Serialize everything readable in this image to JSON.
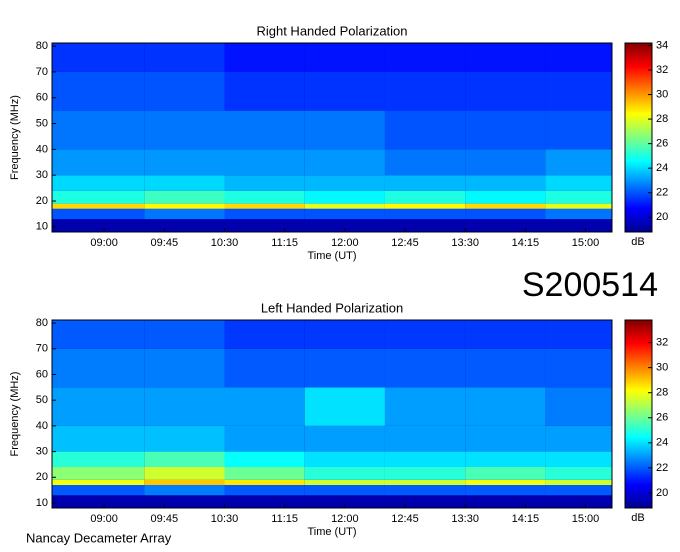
{
  "event_id": "S200514",
  "footer": "Nancay Decameter Array",
  "chart_data": [
    {
      "type": "heatmap",
      "title": "Right Handed Polarization",
      "x_label": "Time (UT)",
      "y_label": "Frequency (MHz)",
      "colorbar_label": "dB",
      "xlim": [
        8.35,
        15.33
      ],
      "ylim": [
        8,
        81.2
      ],
      "clim": [
        18.8,
        34.2
      ],
      "xticks": [
        {
          "value": 9,
          "label": "09:00"
        },
        {
          "value": 9.75,
          "label": "09:45"
        },
        {
          "value": 10.5,
          "label": "10:30"
        },
        {
          "value": 11.25,
          "label": "11:15"
        },
        {
          "value": 12,
          "label": "12:00"
        },
        {
          "value": 12.75,
          "label": "12:45"
        },
        {
          "value": 13.5,
          "label": "13:30"
        },
        {
          "value": 14.25,
          "label": "14:15"
        },
        {
          "value": 15,
          "label": "15:00"
        }
      ],
      "yticks": [
        10,
        20,
        30,
        40,
        50,
        60,
        70,
        80
      ],
      "cticks": [
        20,
        22,
        24,
        26,
        28,
        30,
        32,
        34
      ],
      "x_edges": [
        8.35,
        9.5,
        10.5,
        11.5,
        12.5,
        13.5,
        14.5,
        15.33
      ],
      "y_edges": [
        8,
        13,
        17,
        19,
        24,
        30,
        40,
        55,
        70,
        81.2
      ],
      "z": [
        [
          19.5,
          19.5,
          19.5,
          19.5,
          19.5,
          19.5,
          19.5
        ],
        [
          22,
          22.5,
          22,
          22,
          22,
          22,
          22.5
        ],
        [
          29,
          28.5,
          29,
          28,
          28.5,
          29,
          28
        ],
        [
          25,
          25.5,
          25,
          24.5,
          25,
          24.5,
          25
        ],
        [
          24,
          24,
          23.5,
          23.5,
          23.5,
          23.5,
          24
        ],
        [
          23,
          23,
          23,
          23,
          22.5,
          22.5,
          23
        ],
        [
          22.5,
          22.5,
          22.5,
          22.5,
          22,
          22,
          22
        ],
        [
          22,
          22,
          21.5,
          21.5,
          21.5,
          21.5,
          21.5
        ],
        [
          21.5,
          21.5,
          21,
          21,
          21,
          21,
          21
        ]
      ]
    },
    {
      "type": "heatmap",
      "title": "Left Handed Polarization",
      "x_label": "Time (UT)",
      "y_label": "Frequency (MHz)",
      "colorbar_label": "dB",
      "xlim": [
        8.35,
        15.33
      ],
      "ylim": [
        8.05,
        81.2
      ],
      "clim": [
        18.8,
        33.8
      ],
      "xticks": [
        {
          "value": 9,
          "label": "09:00"
        },
        {
          "value": 9.75,
          "label": "09:45"
        },
        {
          "value": 10.5,
          "label": "10:30"
        },
        {
          "value": 11.25,
          "label": "11:15"
        },
        {
          "value": 12,
          "label": "12:00"
        },
        {
          "value": 12.75,
          "label": "12:45"
        },
        {
          "value": 13.5,
          "label": "13:30"
        },
        {
          "value": 14.25,
          "label": "14:15"
        },
        {
          "value": 15,
          "label": "15:00"
        }
      ],
      "yticks": [
        10,
        20,
        30,
        40,
        50,
        60,
        70,
        80
      ],
      "cticks": [
        20,
        22,
        24,
        26,
        28,
        30,
        32
      ],
      "x_edges": [
        8.35,
        9.5,
        10.5,
        11.5,
        12.5,
        13.5,
        14.5,
        15.33
      ],
      "y_edges": [
        8.05,
        13,
        17,
        19,
        24,
        30,
        40,
        55,
        70,
        81.2
      ],
      "z": [
        [
          19.5,
          19.5,
          19.5,
          19.5,
          19.5,
          19.5,
          19.5
        ],
        [
          22,
          22.5,
          22,
          22,
          22,
          22,
          22
        ],
        [
          28,
          29,
          28.5,
          27.5,
          27.5,
          28,
          27.5
        ],
        [
          26.5,
          27.5,
          26,
          25,
          25,
          25.5,
          25
        ],
        [
          25,
          25.5,
          24.5,
          24,
          24,
          24,
          24
        ],
        [
          23.5,
          23.5,
          23,
          23,
          23,
          23,
          23
        ],
        [
          23,
          23,
          23,
          24,
          23,
          23,
          22.5
        ],
        [
          22.5,
          22.5,
          22,
          22,
          22,
          22,
          22
        ],
        [
          22,
          22,
          21.5,
          21.5,
          21.5,
          21.5,
          21.5
        ]
      ]
    }
  ]
}
